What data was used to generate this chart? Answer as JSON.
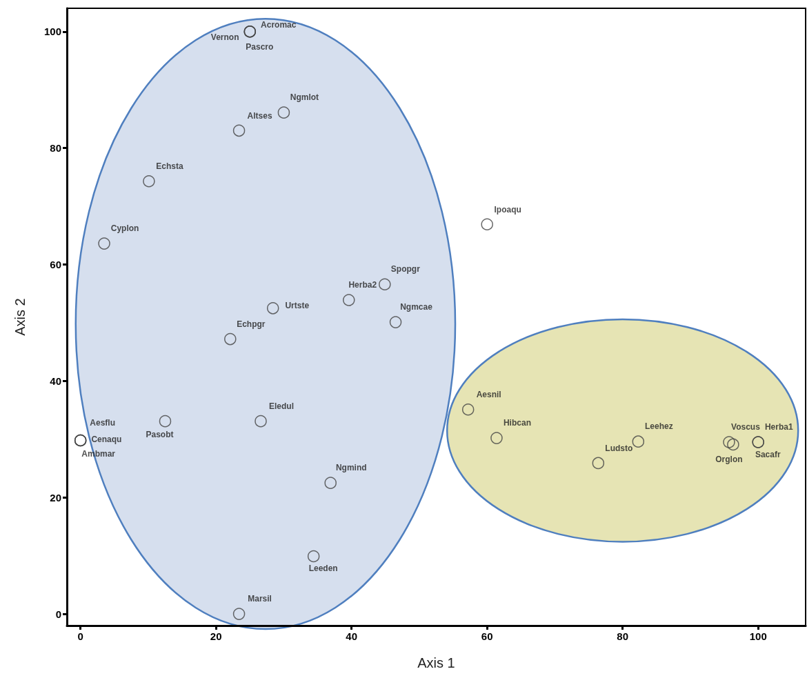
{
  "chart_data": {
    "type": "scatter",
    "xlabel": "Axis 1",
    "ylabel": "Axis 2",
    "xlim": [
      -2,
      107
    ],
    "ylim": [
      -2,
      104
    ],
    "xticks": [
      0,
      20,
      40,
      60,
      80,
      100
    ],
    "yticks": [
      0,
      20,
      40,
      60,
      80,
      100
    ],
    "grid": false,
    "marker": "circle",
    "series": [
      {
        "color": "#444444",
        "x": [
          25,
          25,
          25,
          30.0,
          23.4,
          10.1,
          3.5,
          60.0,
          44.9,
          39.6,
          28.4,
          46.5,
          22.1,
          26.6,
          12.5,
          0,
          0,
          0,
          36.9,
          34.4,
          23.4,
          57.2,
          61.4,
          82.3,
          76.4,
          95.7,
          96.3,
          100,
          100
        ],
        "values": [
          100,
          100,
          100,
          86.1,
          83.0,
          74.3,
          63.6,
          66.9,
          56.6,
          53.9,
          52.5,
          50.1,
          47.2,
          33.1,
          33.1,
          29.8,
          29.8,
          29.8,
          22.5,
          9.9,
          0,
          35.1,
          30.2,
          29.6,
          25.9,
          29.5,
          29.1,
          29.5,
          29.5
        ],
        "value_labels": [
          "Vernon",
          "Acromac",
          "Pascro",
          "Ngmlot",
          "Altses",
          "Echsta",
          "Cyplon",
          "Ipoaqu",
          "Spopgr",
          "Herba2",
          "Urtste",
          "Ngmcae",
          "Echpgr",
          "Eledul",
          "Pasobt",
          "Aesflu",
          "Cenaqu",
          "Ambmar",
          "Ngmind",
          "Leeden",
          "Marsil",
          "Aesnil",
          "Hibcan",
          "Leehez",
          "Ludsto",
          "Voscus",
          "Orglon",
          "Herba1",
          "Sacafr"
        ]
      }
    ]
  }
}
